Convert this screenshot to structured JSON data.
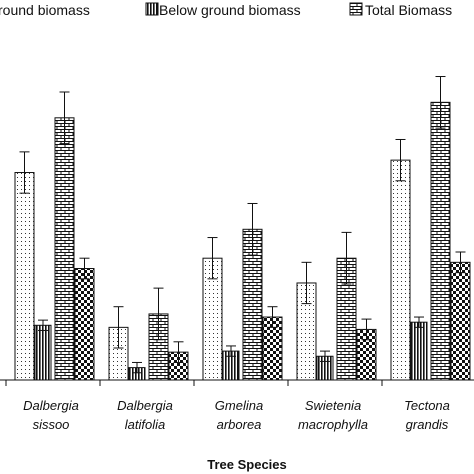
{
  "chart_data": {
    "type": "bar",
    "xlabel": "Tree Species",
    "ylabel": "",
    "categories": [
      [
        "Dalbergia",
        "sissoo"
      ],
      [
        "Dalbergia",
        "latifolia"
      ],
      [
        "Gmelina",
        "arborea"
      ],
      [
        "Swietenia",
        "macrophylla"
      ],
      [
        "Tectona",
        "grandis"
      ]
    ],
    "series": [
      {
        "name": "Above ground biomass",
        "pattern": "dots",
        "values": [
          201,
          51,
          118,
          94,
          213
        ],
        "errors": [
          20,
          20,
          20,
          20,
          20
        ]
      },
      {
        "name": "Below ground biomass",
        "pattern": "vertical-lines",
        "values": [
          53,
          12,
          28,
          23,
          56
        ],
        "errors": [
          5,
          5,
          5,
          5,
          5
        ]
      },
      {
        "name": "Total Biomass",
        "pattern": "bricks",
        "values": [
          254,
          64,
          146,
          118,
          269
        ],
        "errors": [
          25,
          25,
          25,
          25,
          25
        ]
      },
      {
        "name": "",
        "pattern": "checkerboard",
        "values": [
          108,
          27,
          61,
          49,
          114
        ],
        "errors": [
          10,
          10,
          10,
          10,
          10
        ]
      }
    ],
    "ylim": [
      0,
      310
    ],
    "grid": false,
    "legend": {
      "placement": "top",
      "entries": [
        "round biomass",
        "Below ground biomass",
        "Total  Biomass"
      ]
    },
    "colors": {
      "ink": "#111111",
      "background": "#ffffff"
    }
  }
}
